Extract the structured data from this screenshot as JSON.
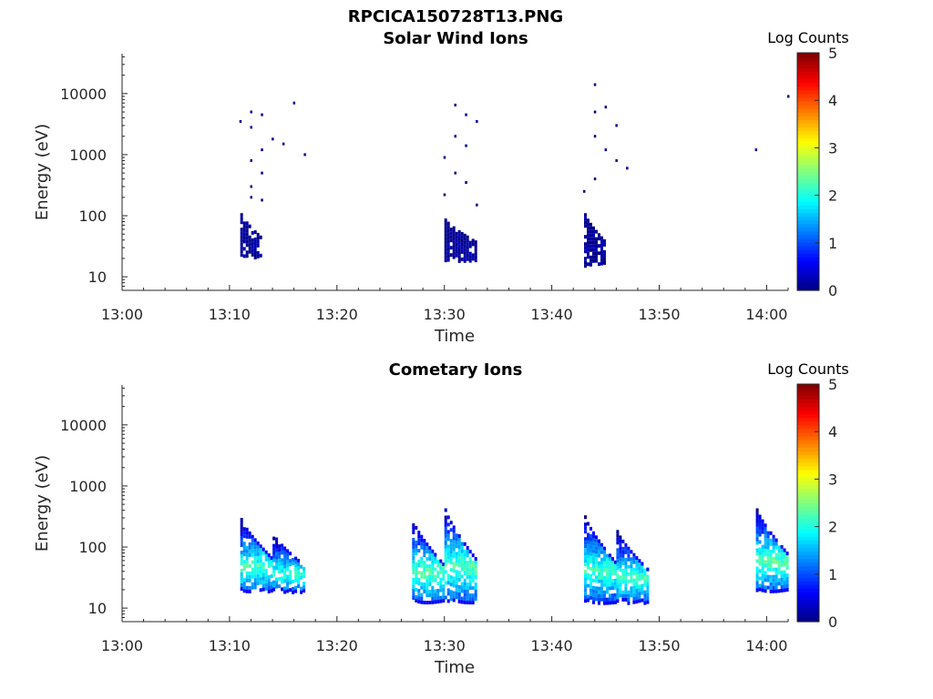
{
  "figure": {
    "filename": "RPCICA150728T13.PNG"
  },
  "chart_data": [
    {
      "type": "heatmap",
      "title": "Solar Wind Ions",
      "xlabel": "Time",
      "ylabel": "Energy (eV)",
      "yscale": "log",
      "xlim": [
        "13:00",
        "14:02"
      ],
      "ylim": [
        6,
        45000
      ],
      "x_ticks": [
        "13:00",
        "13:10",
        "13:20",
        "13:30",
        "13:40",
        "13:50",
        "14:00"
      ],
      "y_ticks": [
        "10",
        "100",
        "1000",
        "10000"
      ],
      "colorbar": {
        "label": "Log Counts",
        "min": 0,
        "max": 5,
        "ticks": [
          "0",
          "1",
          "2",
          "3",
          "4",
          "5"
        ],
        "colormap": "jet"
      },
      "clusters": [
        {
          "t_start": "13:11",
          "t_end": "13:13",
          "e_min": 20,
          "e_max": 110,
          "log_counts": 0.1
        },
        {
          "t_start": "13:30",
          "t_end": "13:33",
          "e_min": 18,
          "e_max": 90,
          "log_counts": 0.1
        },
        {
          "t_start": "13:43",
          "t_end": "13:45",
          "e_min": 15,
          "e_max": 110,
          "log_counts": 0.1
        }
      ],
      "scatter_points": [
        [
          "13:11",
          3500
        ],
        [
          "13:12",
          5000
        ],
        [
          "13:13",
          4500
        ],
        [
          "13:12",
          2800
        ],
        [
          "13:13",
          1200
        ],
        [
          "13:12",
          800
        ],
        [
          "13:13",
          500
        ],
        [
          "13:12",
          300
        ],
        [
          "13:14",
          1800
        ],
        [
          "13:15",
          1500
        ],
        [
          "13:16",
          7000
        ],
        [
          "13:17",
          1000
        ],
        [
          "13:12",
          200
        ],
        [
          "13:13",
          180
        ],
        [
          "13:31",
          6500
        ],
        [
          "13:32",
          4500
        ],
        [
          "13:33",
          3500
        ],
        [
          "13:31",
          2000
        ],
        [
          "13:32",
          1400
        ],
        [
          "13:30",
          900
        ],
        [
          "13:31",
          500
        ],
        [
          "13:32",
          350
        ],
        [
          "13:30",
          220
        ],
        [
          "13:33",
          150
        ],
        [
          "13:44",
          14000
        ],
        [
          "13:45",
          6000
        ],
        [
          "13:46",
          3000
        ],
        [
          "13:44",
          2000
        ],
        [
          "13:45",
          1200
        ],
        [
          "13:46",
          800
        ],
        [
          "13:47",
          600
        ],
        [
          "13:44",
          400
        ],
        [
          "13:43",
          250
        ],
        [
          "13:44",
          5000
        ],
        [
          "13:59",
          1200
        ],
        [
          "14:02",
          9000
        ]
      ]
    },
    {
      "type": "heatmap",
      "title": "Cometary Ions",
      "xlabel": "Time",
      "ylabel": "Energy (eV)",
      "yscale": "log",
      "xlim": [
        "13:00",
        "14:02"
      ],
      "ylim": [
        6,
        45000
      ],
      "x_ticks": [
        "13:00",
        "13:10",
        "13:20",
        "13:30",
        "13:40",
        "13:50",
        "14:00"
      ],
      "y_ticks": [
        "10",
        "100",
        "1000",
        "10000"
      ],
      "colorbar": {
        "label": "Log Counts",
        "min": 0,
        "max": 5,
        "ticks": [
          "0",
          "1",
          "2",
          "3",
          "4",
          "5"
        ],
        "colormap": "jet"
      },
      "clusters": [
        {
          "t_start": "13:11",
          "t_end": "13:14",
          "e_min": 18,
          "e_max": 300,
          "log_counts": 2.2
        },
        {
          "t_start": "13:14",
          "t_end": "13:17",
          "e_min": 18,
          "e_max": 170,
          "log_counts": 2.1
        },
        {
          "t_start": "13:27",
          "t_end": "13:30",
          "e_min": 12,
          "e_max": 280,
          "log_counts": 2.3
        },
        {
          "t_start": "13:30",
          "t_end": "13:33",
          "e_min": 12,
          "e_max": 430,
          "log_counts": 2.3
        },
        {
          "t_start": "13:43",
          "t_end": "13:46",
          "e_min": 12,
          "e_max": 330,
          "log_counts": 2.2
        },
        {
          "t_start": "13:46",
          "t_end": "13:49",
          "e_min": 12,
          "e_max": 190,
          "log_counts": 2.2
        },
        {
          "t_start": "13:59",
          "t_end": "14:02",
          "e_min": 18,
          "e_max": 430,
          "log_counts": 2.3
        }
      ],
      "scatter_points": []
    }
  ]
}
